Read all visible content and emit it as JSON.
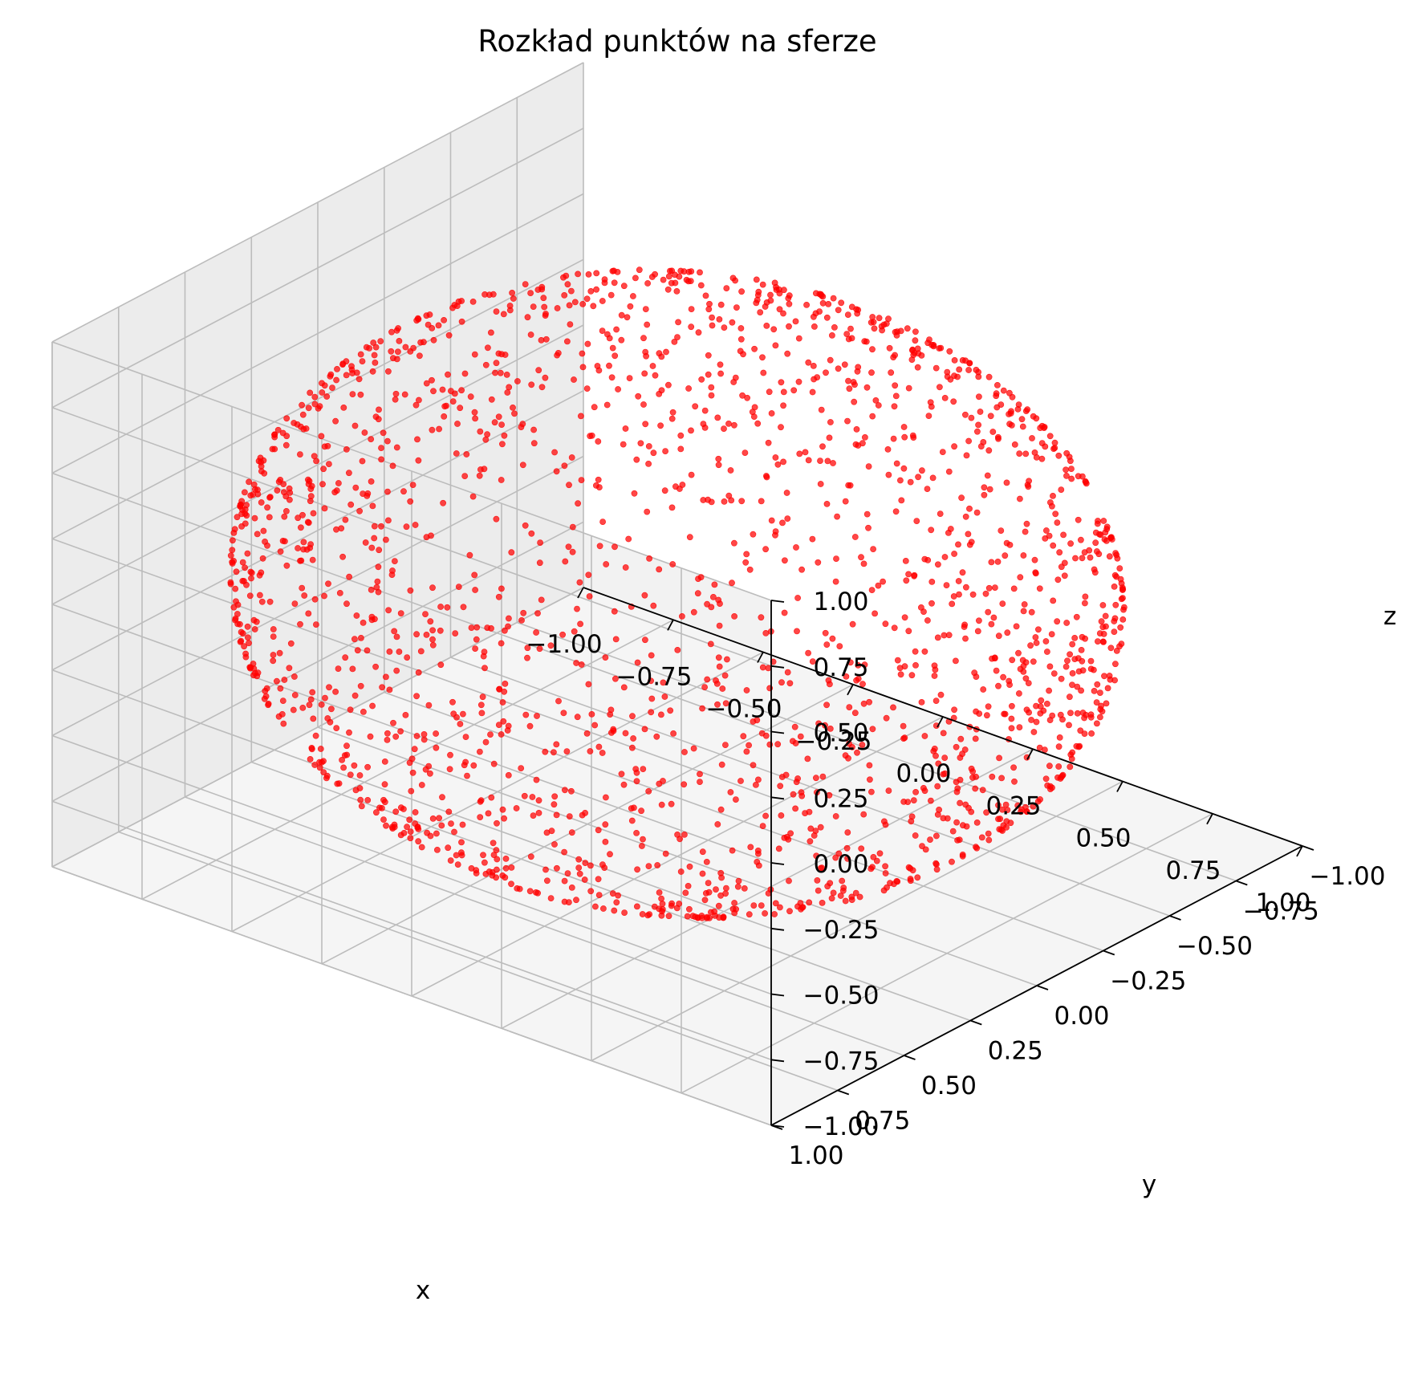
{
  "chart_data": {
    "type": "scatter",
    "title": "Rozkład punktów na sferze",
    "xlabel": "x",
    "ylabel": "y",
    "zlabel": "z",
    "xlim": [
      -1.0,
      1.0
    ],
    "ylim": [
      -1.0,
      1.0
    ],
    "zlim": [
      -1.0,
      1.0
    ],
    "xticks": [
      "−1.00",
      "−0.75",
      "−0.50",
      "−0.25",
      "0.00",
      "0.25",
      "0.50",
      "0.75",
      "1.00"
    ],
    "yticks": [
      "−1.00",
      "−0.75",
      "−0.50",
      "−0.25",
      "0.00",
      "0.25",
      "0.50",
      "0.75",
      "1.00"
    ],
    "zticks": [
      "−1.00",
      "−0.75",
      "−0.50",
      "−0.25",
      "0.00",
      "0.25",
      "0.50",
      "0.75",
      "1.00"
    ],
    "grid": true,
    "marker_color": "#ff0000",
    "surface": "unit sphere x²+y²+z²=1",
    "points_shown": 2000
  }
}
